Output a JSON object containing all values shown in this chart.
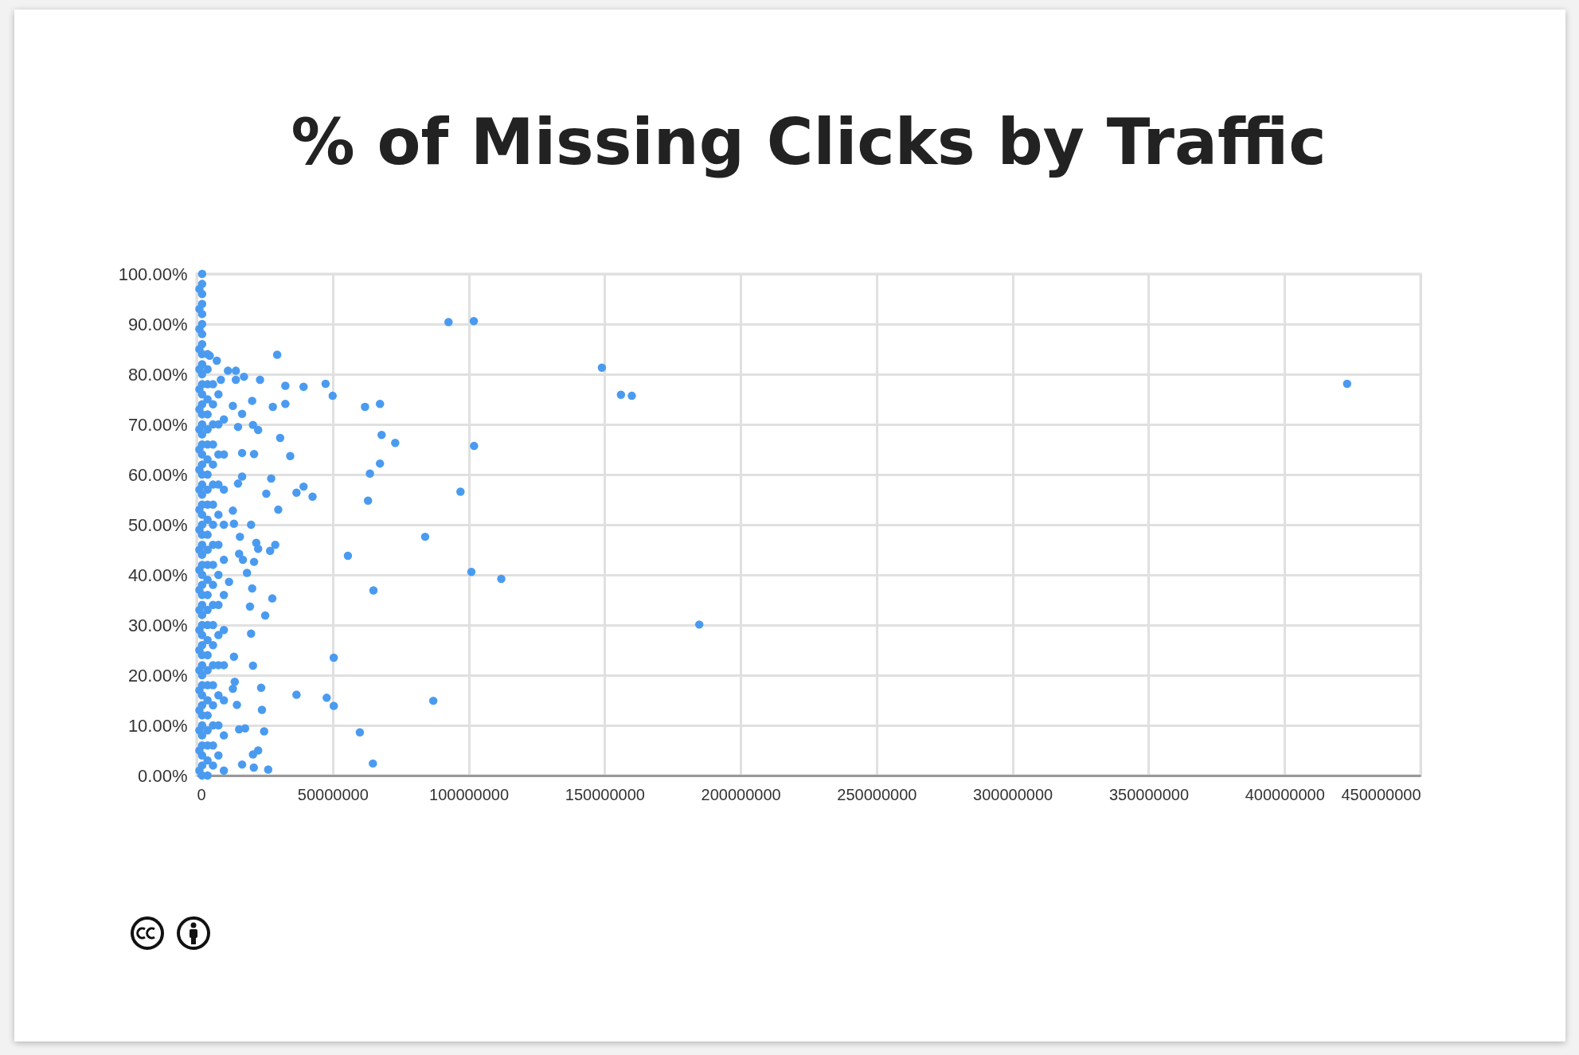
{
  "chart_data": {
    "type": "scatter",
    "title": "% of Missing Clicks by Traffic",
    "marker": "circle",
    "grid": true,
    "xlim": [
      0,
      450000000
    ],
    "xticks": [
      0,
      50000000,
      100000000,
      150000000,
      200000000,
      250000000,
      300000000,
      350000000,
      400000000,
      450000000
    ],
    "ylim": [
      0,
      100
    ],
    "yticks": [
      {
        "value": 0,
        "label": "0.00%"
      },
      {
        "value": 10,
        "label": "10.00%"
      },
      {
        "value": 20,
        "label": "20.00%"
      },
      {
        "value": 30,
        "label": "30.00%"
      },
      {
        "value": 40,
        "label": "40.00%"
      },
      {
        "value": 50,
        "label": "50.00%"
      },
      {
        "value": 60,
        "label": "60.00%"
      },
      {
        "value": 70,
        "label": "70.00%"
      },
      {
        "value": 80,
        "label": "80.00%"
      },
      {
        "value": 90,
        "label": "90.00%"
      },
      {
        "value": 100,
        "label": "100.00%"
      }
    ],
    "series": [
      {
        "color": "#4a9bf0",
        "x": [
          2000000,
          2000000,
          2000000,
          2000000,
          2000000,
          2000000,
          2000000,
          2000000,
          2000000,
          2000000,
          2000000,
          2000000,
          2000000,
          2000000,
          2000000,
          2000000,
          2000000,
          2000000,
          2000000,
          2000000,
          2000000,
          2000000,
          2000000,
          2000000,
          2000000,
          2000000,
          2000000,
          2000000,
          2000000,
          2000000,
          2000000,
          2000000,
          2000000,
          2000000,
          2000000,
          2000000,
          2000000,
          2000000,
          2000000,
          2000000,
          2000000,
          2000000,
          2000000,
          2000000,
          2000000,
          2000000,
          2000000,
          2000000,
          2000000,
          2000000,
          2000000,
          1000000,
          1000000,
          1000000,
          1000000,
          1000000,
          1000000,
          1000000,
          1000000,
          1000000,
          1000000,
          1000000,
          1000000,
          1000000,
          1000000,
          1000000,
          1000000,
          1000000,
          1000000,
          1000000,
          1000000,
          1000000,
          1000000,
          1000000,
          1000000,
          1000000,
          4000000,
          4000000,
          4000000,
          4000000,
          4000000,
          4000000,
          4000000,
          4000000,
          4000000,
          4000000,
          4000000,
          4000000,
          4000000,
          4000000,
          4000000,
          4000000,
          4000000,
          4000000,
          4000000,
          4000000,
          4000000,
          4000000,
          4000000,
          4000000,
          4000000,
          4000000,
          4000000,
          4000000,
          4000000,
          6000000,
          6000000,
          6000000,
          6000000,
          6000000,
          6000000,
          6000000,
          6000000,
          6000000,
          6000000,
          6000000,
          6000000,
          6000000,
          6000000,
          6000000,
          6000000,
          6000000,
          6000000,
          6000000,
          6000000,
          8000000,
          8000000,
          8000000,
          8000000,
          8000000,
          8000000,
          8000000,
          8000000,
          8000000,
          8000000,
          8000000,
          8000000,
          8000000,
          10000000,
          10000000,
          10000000,
          10000000,
          10000000,
          10000000,
          10000000,
          10000000,
          10000000,
          10000000,
          10000000,
          92600000,
          101900000,
          149000000,
          156000000,
          160000000,
          423000000,
          184800000,
          112000000,
          101000000,
          97000000,
          102000000,
          84000000,
          87000000,
          55600000,
          65000000,
          50400000,
          60000000,
          64800000,
          50400000,
          47800000,
          36700000,
          73000000,
          68000000,
          67400000,
          63700000,
          63000000,
          67400000,
          61900000,
          50000000,
          47400000,
          39300000,
          32600000,
          32600000,
          28000000,
          29600000,
          23300000,
          30700000,
          34400000,
          27400000,
          39300000,
          36700000,
          42600000,
          25600000,
          30000000,
          28900000,
          27000000,
          21900000,
          22600000,
          21100000,
          20000000,
          20400000,
          27800000,
          25200000,
          19600000,
          20000000,
          20700000,
          23700000,
          24000000,
          24800000,
          22600000,
          20700000,
          26300000,
          21000000,
          16700000,
          17800000,
          15600000,
          14800000,
          13300000,
          14000000,
          13700000,
          11900000,
          18500000,
          17000000,
          15600000,
          15900000,
          13700000,
          13300000,
          15200000,
          16700000,
          21100000,
          16700000,
          15200000,
          20700000,
          22600000,
          16700000,
          13300000,
          20400000,
          14400000,
          17400000,
          14400000,
          11500000,
          8900000,
          7400000,
          4800000
        ],
        "values": [
          0,
          2,
          4,
          6,
          8,
          10,
          12,
          14,
          16,
          18,
          20,
          22,
          24,
          26,
          28,
          30,
          32,
          34,
          36,
          38,
          40,
          42,
          44,
          46,
          48,
          50,
          52,
          54,
          56,
          58,
          60,
          62,
          64,
          66,
          68,
          70,
          72,
          74,
          76,
          78,
          80,
          82,
          84,
          86,
          88,
          90,
          92,
          94,
          96,
          98,
          100,
          1,
          5,
          9,
          13,
          17,
          21,
          25,
          29,
          33,
          37,
          41,
          45,
          49,
          53,
          57,
          61,
          65,
          69,
          73,
          77,
          81,
          85,
          89,
          93,
          97,
          0,
          3,
          6,
          9,
          12,
          15,
          18,
          21,
          24,
          27,
          30,
          33,
          36,
          39,
          42,
          45,
          48,
          51,
          54,
          57,
          60,
          63,
          66,
          69,
          72,
          75,
          78,
          81,
          84,
          2,
          6,
          10,
          14,
          18,
          22,
          26,
          30,
          34,
          38,
          42,
          46,
          50,
          54,
          58,
          62,
          66,
          70,
          74,
          78,
          4,
          10,
          16,
          22,
          28,
          34,
          40,
          46,
          52,
          58,
          64,
          70,
          76,
          1,
          8,
          15,
          22,
          29,
          36,
          43,
          50,
          57,
          64,
          71,
          90.4,
          90.6,
          81.3,
          75.9,
          75.7,
          78.1,
          30.1,
          39.2,
          40.6,
          56.6,
          65.7,
          47.6,
          14.9,
          43.8,
          36.9,
          23.5,
          8.6,
          2.4,
          13.9,
          15.5,
          16.1,
          66.3,
          67.9,
          62.2,
          60.2,
          54.8,
          74.1,
          73.5,
          75.7,
          78.1,
          77.5,
          77.7,
          74.1,
          73.5,
          83.9,
          78.9,
          67.3,
          63.7,
          59.2,
          57.6,
          56.4,
          55.6,
          56.2,
          53,
          46,
          44.8,
          46.4,
          45.2,
          42.6,
          50,
          37.3,
          35.3,
          31.9,
          33.7,
          28.3,
          21.9,
          17.5,
          13.1,
          8.8,
          5,
          4.2,
          1.2,
          1.6,
          2.2,
          9.4,
          9.2,
          14.1,
          17.3,
          18.7,
          23.7,
          38.6,
          40.4,
          43,
          44.2,
          47.6,
          50.2,
          52.8,
          58.2,
          59.6,
          64.1,
          64.3,
          69.5,
          69.9,
          68.9,
          72.1,
          73.7,
          74.7,
          78.9,
          79.5,
          80.7,
          80.7,
          78.9,
          82.7,
          83.7
        ]
      }
    ]
  }
}
